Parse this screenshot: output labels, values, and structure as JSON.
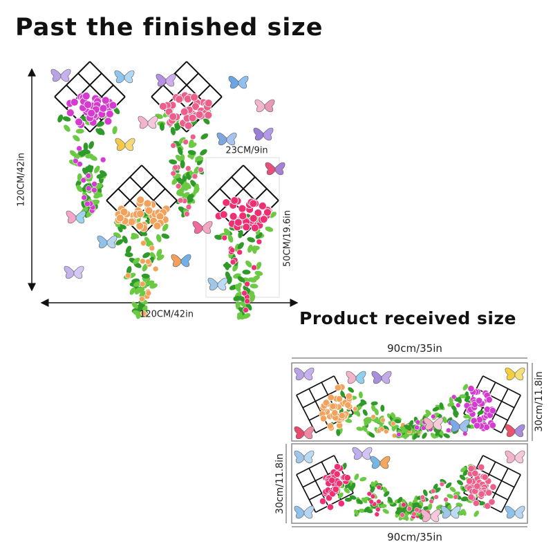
{
  "finished": {
    "title": "Past the finished size",
    "height_label": "120CM/42in",
    "width_label": "120CM/42in",
    "piece_width_label": "23CM/9in",
    "piece_height_label": "50CM/19.6in"
  },
  "received": {
    "title": "Product received size",
    "panel1_width_label": "90cm/35in",
    "panel1_height_label": "30cm/11.8in",
    "panel2_height_label": "30cm/11.8in",
    "panel2_width_label": "90cm/35in"
  },
  "colors": {
    "magenta": "#d63ad0",
    "pink": "#ec5f8a",
    "orange": "#f3a25c",
    "hotpink": "#ee2f73",
    "leaf": "#2f9a2a",
    "leaf_light": "#6cc944",
    "grid": "#111111"
  }
}
